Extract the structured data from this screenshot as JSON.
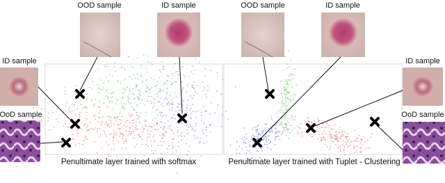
{
  "left_panel": {
    "caption": "Penultimate layer trained with softmax",
    "top_ood_label": "OOD sample",
    "top_id_label": "ID sample",
    "side_id_label": "ID sample",
    "side_ood_label": "OoD sample"
  },
  "right_panel": {
    "caption": "Penultimate layer trained with Tuplet - Clustering",
    "top_ood_label": "OOD sample",
    "top_id_label": "ID sample",
    "side_id_label": "ID sample",
    "side_ood_label": "OoD sample"
  }
}
